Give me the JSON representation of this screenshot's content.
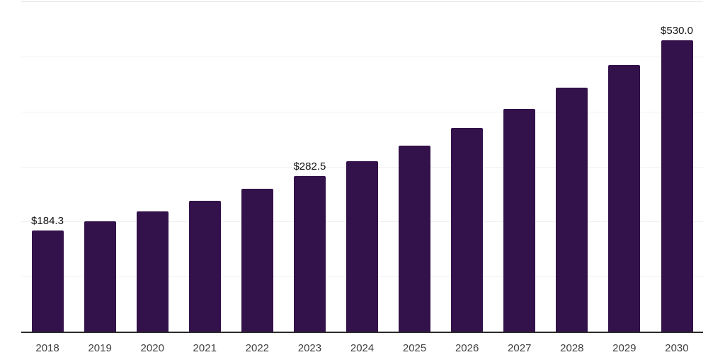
{
  "chart_data": {
    "type": "bar",
    "title": "",
    "xlabel": "",
    "ylabel": "",
    "categories": [
      "2018",
      "2019",
      "2020",
      "2021",
      "2022",
      "2023",
      "2024",
      "2025",
      "2026",
      "2027",
      "2028",
      "2029",
      "2030"
    ],
    "values": [
      184.3,
      200.7,
      218.6,
      238.1,
      259.4,
      282.5,
      309.1,
      338.2,
      370.0,
      404.8,
      442.9,
      484.6,
      530.0
    ],
    "value_labels": [
      "$184.3",
      "",
      "",
      "",
      "",
      "$282.5",
      "",
      "",
      "",
      "",
      "",
      "",
      "$530.0"
    ],
    "ylim": [
      0,
      600
    ],
    "grid_step": 100,
    "grid": true,
    "legend": "none",
    "y_tick_labels_visible": false,
    "colors": {
      "bar": "#33114a",
      "gridline": "#f1f1f1",
      "top_gridline": "#e4e4e4",
      "axis_line": "#2b2b2b",
      "tick_label": "#3f3f3f",
      "value_label": "#111111",
      "background": "#ffffff"
    }
  }
}
